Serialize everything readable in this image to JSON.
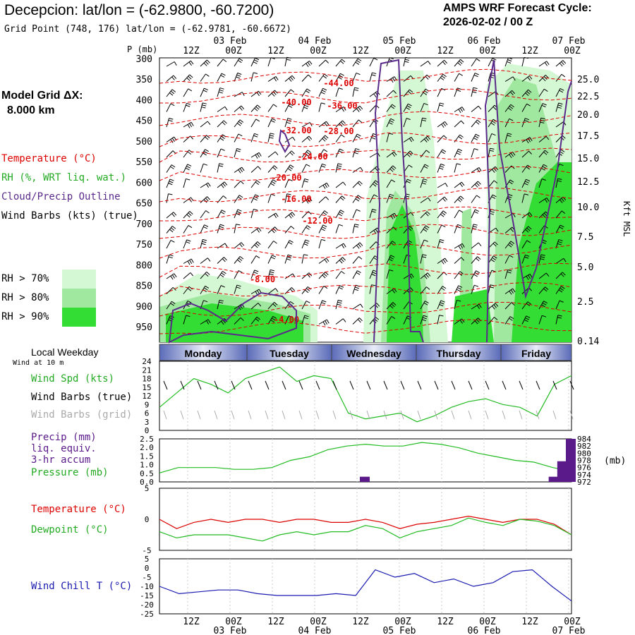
{
  "header": {
    "title": "Decepcion:  lat/lon = (-62.9800, -60.7200)",
    "grid_point": "Grid Point (748, 176) lat/lon = (-62.9781, -60.6672)",
    "cycle_line1": "AMPS WRF Forecast Cycle:",
    "cycle_line2": "2026-02-02 / 00  Z"
  },
  "left_labels": {
    "model_grid_1": "Model Grid ΔX:",
    "model_grid_2": "8.000 km",
    "temperature": "Temperature (°C)",
    "rh": "RH (%, WRT liq. wat.)",
    "cloud": "Cloud/Precip Outline",
    "barbs": "Wind Barbs (kts) (true)",
    "rh70": "RH > 70%",
    "rh80": "RH > 80%",
    "rh90": "RH > 90%",
    "local_weekday": "Local Weekday",
    "wind10": "Wind at 10 m",
    "wind_spd": "Wind Spd (kts)",
    "barbs_true": "Wind Barbs (true)",
    "barbs_grid": "Wind Barbs (grid)",
    "precip1": "Precip (mm)",
    "precip2": "liq. equiv.",
    "precip3": "3-hr accum",
    "pressure": "Pressure (mb)",
    "temp2": "Temperature (°C)",
    "dewpoint": "Dewpoint (°C)",
    "windchill": "Wind Chill T (°C)"
  },
  "colors": {
    "temperature": "#dd0000",
    "rh70": "#d4f8d4",
    "rh80": "#a0e8a0",
    "rh90": "#33dd33",
    "cloud": "#5a2a8a",
    "wind": "#22bb22",
    "pressure": "#22bb22",
    "precip": "#5a1a8a",
    "windchill": "#1a1ab0",
    "grid_barbs": "#aaaaaa"
  },
  "chart_data": [
    {
      "type": "heatmap",
      "title": "Cross-section",
      "p_label": "P (mb)",
      "y_levels": [
        "300",
        "350",
        "400",
        "450",
        "500",
        "550",
        "600",
        "650",
        "700",
        "750",
        "800",
        "850",
        "900",
        "950"
      ],
      "right_axis_label": "Kft MSL",
      "right_ticks": [
        "25.0",
        "22.5",
        "20.0",
        "17.5",
        "15.0",
        "12.5",
        "10.0",
        "7.5",
        "5.0",
        "2.5",
        "0.14"
      ],
      "top_hours": [
        "12Z",
        "00Z",
        "12Z",
        "00Z",
        "12Z",
        "00Z",
        "12Z",
        "00Z",
        "12Z",
        "00Z"
      ],
      "top_dates": [
        "03 Feb",
        "04 Feb",
        "05 Feb",
        "06 Feb",
        "07 Feb"
      ],
      "temperature_labels": [
        "-44.00",
        "-40.00",
        "-36.00",
        "-32.00",
        "-28.00",
        "-24.00",
        "-20.00",
        "-16.00",
        "-12.00",
        "-8.00",
        "-4.00"
      ]
    },
    {
      "type": "table",
      "days": [
        "Monday",
        "Tuesday",
        "Wednesday",
        "Thursday",
        "Friday"
      ]
    },
    {
      "type": "line",
      "title": "Wind Spd (kts)",
      "ylim": [
        0,
        24
      ],
      "yticks": [
        "24",
        "21",
        "18",
        "15",
        "12",
        "9",
        "6",
        "3",
        "0"
      ],
      "values": [
        8,
        13,
        18,
        16,
        13,
        18,
        20,
        22,
        17,
        19,
        18,
        6,
        4,
        5,
        6,
        3,
        5,
        8,
        10,
        11,
        9,
        8,
        5,
        16,
        19
      ]
    },
    {
      "type": "line",
      "title": "Precip / Pressure",
      "ylim": [
        0,
        2.5
      ],
      "yticks": [
        "2.5",
        "2.0",
        "1.5",
        "1.0",
        "0.5",
        "0.0"
      ],
      "pressure_ticks": [
        "984",
        "982",
        "980",
        "978",
        "976",
        "974",
        "972"
      ],
      "pressure_unit": "(mb)",
      "pressure": [
        974.5,
        976,
        976,
        976,
        975.5,
        975.5,
        976,
        978,
        979,
        981,
        982,
        982.5,
        982,
        982,
        983,
        982.5,
        981.5,
        980,
        979,
        978,
        977.5,
        976,
        975
      ],
      "precip": [
        {
          "x": 12,
          "v": 0.3
        },
        {
          "x": 23,
          "v": 0.3
        },
        {
          "x": 23.5,
          "v": 1.2
        },
        {
          "x": 24,
          "v": 2.5
        }
      ]
    },
    {
      "type": "line",
      "title": "Temperature / Dewpoint",
      "ylim": [
        -5,
        5
      ],
      "yticks": [
        "5",
        "0",
        "-5"
      ],
      "temperature": [
        0,
        -1.5,
        -0.5,
        0,
        -0.5,
        0,
        0,
        -0.5,
        0,
        0,
        -0.5,
        -0.5,
        0,
        -0.5,
        -1.5,
        -0.8,
        -0.5,
        0,
        0.5,
        0,
        -0.5,
        0,
        0,
        -0.8,
        -2.5
      ],
      "dewpoint": [
        -2,
        -3,
        -2.5,
        -2.5,
        -2.5,
        -3,
        -3.5,
        -2.5,
        -2,
        -2.5,
        -2,
        -2,
        -1,
        -1.5,
        -3,
        -2,
        -1.5,
        -1,
        0.2,
        -0.5,
        -1,
        0,
        -0.3,
        -1,
        -2.5
      ]
    },
    {
      "type": "line",
      "title": "Wind Chill T (°C)",
      "ylim": [
        -25,
        5
      ],
      "yticks": [
        "5",
        "0",
        "-5",
        "-10",
        "-15",
        "-20",
        "-25"
      ],
      "values": [
        -10,
        -14,
        -13,
        -12,
        -12,
        -14,
        -15,
        -15,
        -15,
        -14,
        -15,
        -1,
        -5,
        -3,
        -8,
        -6,
        -10,
        -8,
        -2,
        -1,
        -10,
        -18
      ]
    },
    {
      "type": "table",
      "bottom_hours": [
        "12Z",
        "00Z",
        "12Z",
        "00Z",
        "12Z",
        "00Z",
        "12Z",
        "00Z",
        "12Z",
        "00Z"
      ],
      "bottom_dates": [
        "03 Feb",
        "04 Feb",
        "05 Feb",
        "06 Feb",
        "07 Feb"
      ]
    }
  ]
}
